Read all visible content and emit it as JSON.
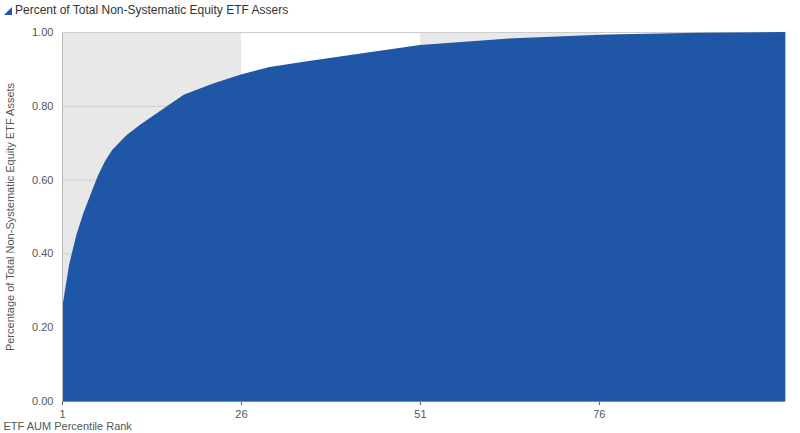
{
  "chart_data": {
    "type": "area",
    "title": "Percent of Total Non-Systematic Equity ETF Assers",
    "x_label": "ETF AUM Percentile Rank",
    "y_label": "Percentage of Total Non-Systematic Equity ETF Assets",
    "x": [
      1,
      2,
      3,
      4,
      5,
      6,
      7,
      8,
      10,
      12,
      15,
      18,
      22,
      26,
      30,
      35,
      42,
      51,
      63,
      77,
      90,
      102
    ],
    "values": [
      0.25,
      0.37,
      0.45,
      0.51,
      0.56,
      0.61,
      0.65,
      0.68,
      0.72,
      0.75,
      0.79,
      0.83,
      0.86,
      0.885,
      0.905,
      0.92,
      0.94,
      0.965,
      0.982,
      0.993,
      0.998,
      1.0
    ],
    "color": "#1f56a5",
    "xlim": [
      1,
      102
    ],
    "xticks": [
      1,
      26,
      51,
      76
    ],
    "ylim": [
      0,
      1
    ],
    "yticks": [
      {
        "value": 0,
        "label": "0.00"
      },
      {
        "value": 0.2,
        "label": "0.20"
      },
      {
        "value": 0.4,
        "label": "0.40"
      },
      {
        "value": 0.6,
        "label": "0.60"
      },
      {
        "value": 0.8,
        "label": "0.80"
      },
      {
        "value": 1,
        "label": "1.00"
      }
    ],
    "grid": true
  }
}
